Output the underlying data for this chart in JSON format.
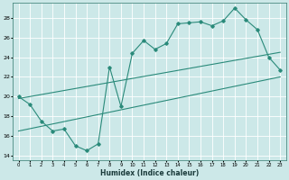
{
  "title": "",
  "xlabel": "Humidex (Indice chaleur)",
  "bg_color": "#cce8e8",
  "grid_color": "#ffffff",
  "line_color": "#2a8a7a",
  "xlim": [
    -0.5,
    23.5
  ],
  "ylim": [
    13.5,
    29.5
  ],
  "yticks": [
    14,
    16,
    18,
    20,
    22,
    24,
    26,
    28
  ],
  "xticks": [
    0,
    1,
    2,
    3,
    4,
    5,
    6,
    7,
    8,
    9,
    10,
    11,
    12,
    13,
    14,
    15,
    16,
    17,
    18,
    19,
    20,
    21,
    22,
    23
  ],
  "curve1_x": [
    0,
    1,
    2,
    3,
    4,
    5,
    6,
    7,
    8,
    9,
    10,
    11,
    12,
    13,
    14,
    15,
    16,
    17,
    18,
    19,
    20,
    21,
    22,
    23
  ],
  "curve1_y": [
    20.0,
    19.2,
    17.5,
    16.5,
    16.7,
    15.0,
    14.5,
    15.2,
    23.0,
    19.0,
    24.4,
    25.7,
    24.8,
    25.4,
    27.4,
    27.5,
    27.6,
    27.2,
    27.7,
    29.0,
    27.8,
    26.8,
    24.0,
    22.7
  ],
  "line1_x": [
    0,
    23
  ],
  "line1_y": [
    19.8,
    24.5
  ],
  "line2_x": [
    0,
    23
  ],
  "line2_y": [
    16.5,
    22.0
  ]
}
